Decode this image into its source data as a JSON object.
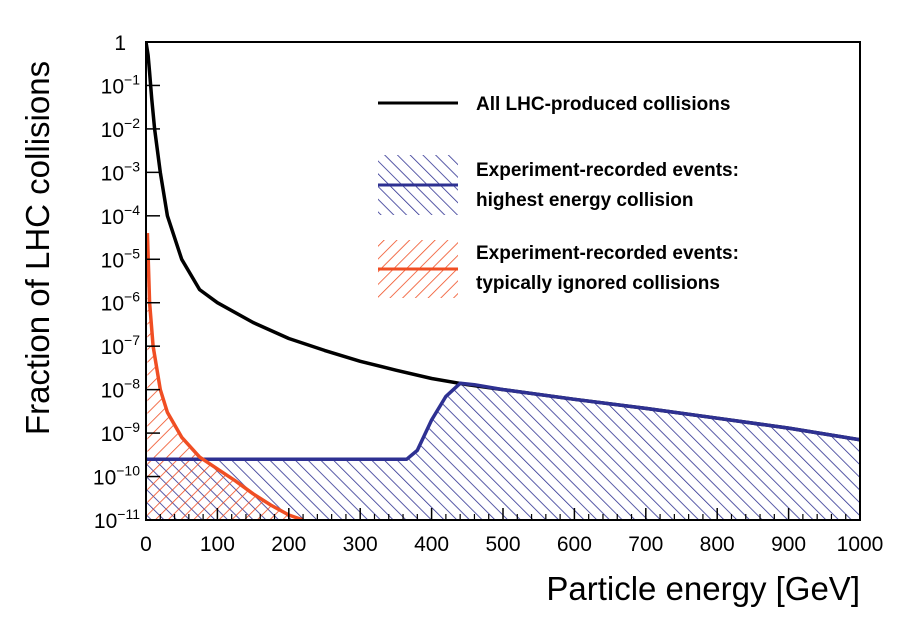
{
  "chart_data": {
    "type": "area",
    "xlabel": "Particle energy [GeV]",
    "ylabel": "Fraction of LHC collisions",
    "xlim": [
      0,
      1000
    ],
    "ylim": [
      1e-11,
      1
    ],
    "yscale": "log",
    "x_ticks": [
      0,
      100,
      200,
      300,
      400,
      500,
      600,
      700,
      800,
      900,
      1000
    ],
    "y_ticks": [
      {
        "value": 1,
        "base": "1",
        "exp": ""
      },
      {
        "value": 0.1,
        "base": "10",
        "exp": "−1"
      },
      {
        "value": 0.01,
        "base": "10",
        "exp": "−2"
      },
      {
        "value": 0.001,
        "base": "10",
        "exp": "−3"
      },
      {
        "value": 0.0001,
        "base": "10",
        "exp": "−4"
      },
      {
        "value": 1e-05,
        "base": "10",
        "exp": "−5"
      },
      {
        "value": 1e-06,
        "base": "10",
        "exp": "−6"
      },
      {
        "value": 1e-07,
        "base": "10",
        "exp": "−7"
      },
      {
        "value": 1e-08,
        "base": "10",
        "exp": "−8"
      },
      {
        "value": 1e-09,
        "base": "10",
        "exp": "−9"
      },
      {
        "value": 1e-10,
        "base": "10",
        "exp": "−10"
      },
      {
        "value": 1e-11,
        "base": "10",
        "exp": "−11"
      }
    ],
    "grid": false,
    "legend_position": "top-right",
    "series": [
      {
        "name": "All LHC-produced collisions",
        "style": "line",
        "color": "#000000",
        "x": [
          0,
          3,
          5,
          8,
          12,
          20,
          30,
          50,
          75,
          100,
          150,
          200,
          250,
          300,
          350,
          400,
          450,
          500,
          600,
          700,
          800,
          900,
          1000
        ],
        "y": [
          1,
          0.5,
          0.2,
          0.05,
          0.01,
          0.001,
          0.0001,
          1e-05,
          2e-06,
          1e-06,
          3.5e-07,
          1.5e-07,
          8e-08,
          4.5e-08,
          2.8e-08,
          1.8e-08,
          1.3e-08,
          1e-08,
          6e-09,
          3.7e-09,
          2.2e-09,
          1.3e-09,
          7e-10
        ]
      },
      {
        "name": "Experiment-recorded events: highest energy collision",
        "label_lines": [
          "Experiment-recorded events:",
          "highest energy collision"
        ],
        "style": "hatched-area",
        "color": "#2e3192",
        "x": [
          0,
          100,
          200,
          300,
          365,
          380,
          400,
          420,
          440,
          460,
          500,
          600,
          700,
          800,
          900,
          1000
        ],
        "y": [
          2.5e-10,
          2.5e-10,
          2.5e-10,
          2.5e-10,
          2.5e-10,
          4e-10,
          2e-09,
          7e-09,
          1.4e-08,
          1.3e-08,
          1e-08,
          6e-09,
          3.7e-09,
          2.2e-09,
          1.3e-09,
          7e-10
        ]
      },
      {
        "name": "Experiment-recorded events: typically ignored collisions",
        "label_lines": [
          "Experiment-recorded events:",
          "typically ignored collisions"
        ],
        "style": "hatched-area",
        "color": "#f04e23",
        "x": [
          2,
          5,
          10,
          20,
          30,
          50,
          75,
          100,
          125,
          150,
          175,
          200,
          220
        ],
        "y": [
          4e-05,
          1e-06,
          1e-07,
          1e-08,
          3e-09,
          8e-10,
          2.8e-10,
          1.5e-10,
          8e-11,
          4e-11,
          2.2e-11,
          1.3e-11,
          1e-11
        ]
      }
    ]
  }
}
